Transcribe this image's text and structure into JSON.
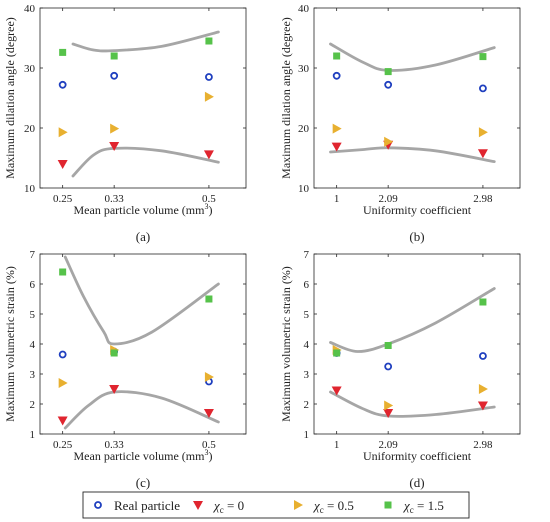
{
  "series_styles": [
    {
      "key": "real",
      "color": "#1f3fbf",
      "marker": "circle"
    },
    {
      "key": "xc0",
      "color": "#e0252f",
      "marker": "triangle-down"
    },
    {
      "key": "xc05",
      "color": "#e8b030",
      "marker": "triangle-right"
    },
    {
      "key": "xc15",
      "color": "#56c24a",
      "marker": "square"
    }
  ],
  "curve_color": "#a6a6a6",
  "legend": {
    "entries": [
      {
        "key": "real",
        "label": "Real particle"
      },
      {
        "key": "xc0",
        "label": "χc = 0"
      },
      {
        "key": "xc05",
        "label": "χc = 0.5"
      },
      {
        "key": "xc15",
        "label": "χc = 1.5"
      }
    ]
  },
  "chart_data": [
    {
      "type": "scatter",
      "panel": "(a)",
      "xlabel": "Mean particle volume (mm3)",
      "ylabel": "Maximum dilation angle (degree)",
      "ylim": [
        10,
        40
      ],
      "yticks": [
        10,
        20,
        30,
        40
      ],
      "categories": [
        "0.25",
        "0.33",
        "0.5"
      ],
      "series": [
        {
          "key": "real",
          "values": [
            27.2,
            28.7,
            28.5
          ]
        },
        {
          "key": "xc0",
          "values": [
            14.0,
            17.0,
            15.6
          ]
        },
        {
          "key": "xc05",
          "values": [
            19.3,
            19.9,
            25.2
          ]
        },
        {
          "key": "xc15",
          "values": [
            32.6,
            32.0,
            34.5
          ]
        }
      ],
      "curves": [
        [
          [
            0.2,
            34.0
          ],
          [
            0.6,
            33.0
          ],
          [
            1.0,
            32.9
          ],
          [
            1.5,
            33.6
          ],
          [
            2.1,
            36.0
          ]
        ],
        [
          [
            0.2,
            12.0
          ],
          [
            0.6,
            15.5
          ],
          [
            1.0,
            16.6
          ],
          [
            1.5,
            16.2
          ],
          [
            2.1,
            14.3
          ]
        ]
      ]
    },
    {
      "type": "scatter",
      "panel": "(b)",
      "xlabel": "Uniformity coefficient",
      "ylabel": "Maximum dilation angle (degree)",
      "ylim": [
        10,
        40
      ],
      "yticks": [
        10,
        20,
        30,
        40
      ],
      "categories": [
        "1",
        "2.09",
        "2.98"
      ],
      "series": [
        {
          "key": "real",
          "values": [
            28.7,
            27.2,
            26.6
          ]
        },
        {
          "key": "xc0",
          "values": [
            16.9,
            17.2,
            15.8
          ]
        },
        {
          "key": "xc05",
          "values": [
            19.9,
            17.7,
            19.3
          ]
        },
        {
          "key": "xc15",
          "values": [
            32.0,
            29.4,
            31.9
          ]
        }
      ],
      "curves": [
        [
          [
            -0.12,
            34.0
          ],
          [
            0.5,
            31.0
          ],
          [
            1.0,
            29.6
          ],
          [
            1.5,
            30.5
          ],
          [
            2.12,
            33.4
          ]
        ],
        [
          [
            -0.12,
            16.0
          ],
          [
            0.5,
            16.4
          ],
          [
            1.0,
            16.7
          ],
          [
            1.5,
            16.2
          ],
          [
            2.12,
            14.4
          ]
        ]
      ]
    },
    {
      "type": "scatter",
      "panel": "(c)",
      "xlabel": "Mean particle volume (mm3)",
      "ylabel": "Maximum volumetric strain (%)",
      "ylim": [
        1,
        7
      ],
      "yticks": [
        1,
        2,
        3,
        4,
        5,
        6,
        7
      ],
      "categories": [
        "0.25",
        "0.33",
        "0.5"
      ],
      "series": [
        {
          "key": "real",
          "values": [
            3.65,
            3.75,
            2.75
          ]
        },
        {
          "key": "xc0",
          "values": [
            1.45,
            2.5,
            1.7
          ]
        },
        {
          "key": "xc05",
          "values": [
            2.7,
            3.8,
            2.9
          ]
        },
        {
          "key": "xc15",
          "values": [
            6.4,
            3.7,
            5.5
          ]
        }
      ],
      "curves": [
        [
          [
            0.05,
            6.9
          ],
          [
            0.4,
            5.6
          ],
          [
            0.8,
            4.4
          ],
          [
            1.0,
            4.0
          ],
          [
            1.4,
            4.4
          ],
          [
            2.1,
            6.0
          ]
        ],
        [
          [
            0.05,
            1.2
          ],
          [
            0.5,
            1.95
          ],
          [
            1.0,
            2.4
          ],
          [
            1.5,
            2.2
          ],
          [
            2.1,
            1.4
          ]
        ]
      ]
    },
    {
      "type": "scatter",
      "panel": "(d)",
      "xlabel": "Uniformity coefficient",
      "ylabel": "Maximum volumetric strain (%)",
      "ylim": [
        1,
        7
      ],
      "yticks": [
        1,
        2,
        3,
        4,
        5,
        6,
        7
      ],
      "categories": [
        "1",
        "2.09",
        "2.98"
      ],
      "series": [
        {
          "key": "real",
          "values": [
            3.7,
            3.25,
            3.6
          ]
        },
        {
          "key": "xc0",
          "values": [
            2.45,
            1.7,
            1.95
          ]
        },
        {
          "key": "xc05",
          "values": [
            3.8,
            1.95,
            2.5
          ]
        },
        {
          "key": "xc15",
          "values": [
            3.7,
            3.95,
            5.4
          ]
        }
      ],
      "curves": [
        [
          [
            -0.12,
            4.05
          ],
          [
            0.4,
            3.75
          ],
          [
            1.0,
            4.0
          ],
          [
            1.5,
            4.7
          ],
          [
            2.12,
            5.85
          ]
        ],
        [
          [
            -0.12,
            2.4
          ],
          [
            0.5,
            1.85
          ],
          [
            1.0,
            1.6
          ],
          [
            1.5,
            1.65
          ],
          [
            2.12,
            1.9
          ]
        ]
      ]
    }
  ]
}
